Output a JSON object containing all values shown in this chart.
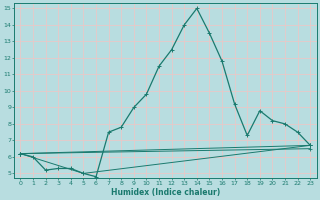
{
  "xlabel": "Humidex (Indice chaleur)",
  "xlim": [
    -0.5,
    23.5
  ],
  "ylim": [
    4.7,
    15.3
  ],
  "xticks": [
    0,
    1,
    2,
    3,
    4,
    5,
    6,
    7,
    8,
    9,
    10,
    11,
    12,
    13,
    14,
    15,
    16,
    17,
    18,
    19,
    20,
    21,
    22,
    23
  ],
  "yticks": [
    5,
    6,
    7,
    8,
    9,
    10,
    11,
    12,
    13,
    14,
    15
  ],
  "background_color": "#b8dde0",
  "grid_color": "#e8c8c8",
  "line_color": "#1a7a6e",
  "lines": [
    {
      "x": [
        0,
        1,
        2,
        3,
        4,
        5,
        6,
        7,
        8,
        9,
        10,
        11,
        12,
        13,
        14,
        15,
        16,
        17,
        18,
        19,
        20,
        21,
        22,
        23
      ],
      "y": [
        6.2,
        6.0,
        5.2,
        5.3,
        5.3,
        5.0,
        4.8,
        7.5,
        7.8,
        9.0,
        9.8,
        11.5,
        12.5,
        14.0,
        15.0,
        13.5,
        11.8,
        9.2,
        7.3,
        8.8,
        8.2,
        8.0,
        7.5,
        6.7
      ]
    },
    {
      "x": [
        0,
        23
      ],
      "y": [
        6.2,
        6.7
      ]
    },
    {
      "x": [
        0,
        5,
        23
      ],
      "y": [
        6.2,
        5.0,
        6.7
      ]
    },
    {
      "x": [
        0,
        23
      ],
      "y": [
        6.2,
        6.5
      ]
    }
  ]
}
